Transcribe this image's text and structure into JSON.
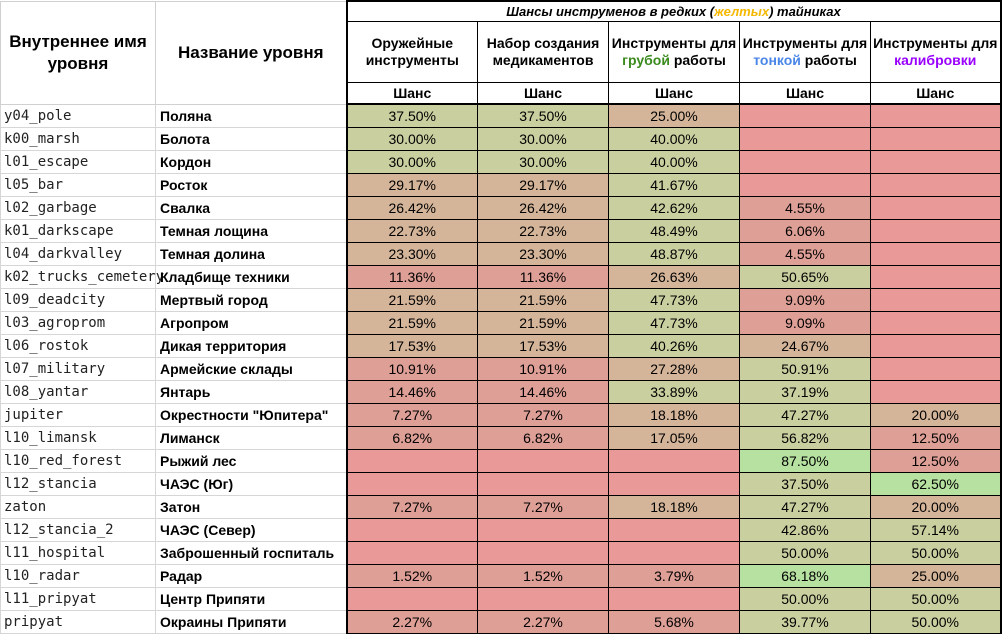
{
  "header": {
    "col_internal": "Внутреннее имя уровня",
    "col_name": "Название уровня",
    "group_title": {
      "pre": "Шансы инструменов в редких (",
      "highlight": "желтых",
      "post": ") тайниках"
    },
    "columns": [
      {
        "text": "Оружейные инструменты"
      },
      {
        "text": "Набор создания медикаментов"
      },
      {
        "pre": "Инструменты для ",
        "colored": "грубой",
        "post": " работы",
        "color": "#3a8a1d"
      },
      {
        "pre": "Инструменты для ",
        "colored": "тонкой",
        "post": " работы",
        "color": "#4a86e8"
      },
      {
        "pre": "Инструменты для ",
        "colored": "калибровки",
        "post": "",
        "color": "#9900ff"
      }
    ],
    "shans": "Шанс"
  },
  "colors": {
    "best": "#b7e1a1",
    "good": "#c9cf9f",
    "mid": "#d4b59a",
    "low": "#de9f96",
    "empty": "#ea9999"
  },
  "rows": [
    {
      "code": "y04_pole",
      "name": "Поляна",
      "values": [
        "37.50%",
        "37.50%",
        "25.00%",
        "",
        ""
      ]
    },
    {
      "code": "k00_marsh",
      "name": "Болота",
      "values": [
        "30.00%",
        "30.00%",
        "40.00%",
        "",
        ""
      ]
    },
    {
      "code": "l01_escape",
      "name": "Кордон",
      "values": [
        "30.00%",
        "30.00%",
        "40.00%",
        "",
        ""
      ]
    },
    {
      "code": "l05_bar",
      "name": "Росток",
      "values": [
        "29.17%",
        "29.17%",
        "41.67%",
        "",
        ""
      ]
    },
    {
      "code": "l02_garbage",
      "name": "Свалка",
      "values": [
        "26.42%",
        "26.42%",
        "42.62%",
        "4.55%",
        ""
      ]
    },
    {
      "code": "k01_darkscape",
      "name": "Темная лощина",
      "values": [
        "22.73%",
        "22.73%",
        "48.49%",
        "6.06%",
        ""
      ]
    },
    {
      "code": "l04_darkvalley",
      "name": "Темная долина",
      "values": [
        "23.30%",
        "23.30%",
        "48.87%",
        "4.55%",
        ""
      ]
    },
    {
      "code": "k02_trucks_cemetery",
      "name": "Кладбище техники",
      "values": [
        "11.36%",
        "11.36%",
        "26.63%",
        "50.65%",
        ""
      ]
    },
    {
      "code": "l09_deadcity",
      "name": "Мертвый город",
      "values": [
        "21.59%",
        "21.59%",
        "47.73%",
        "9.09%",
        ""
      ]
    },
    {
      "code": "l03_agroprom",
      "name": "Агропром",
      "values": [
        "21.59%",
        "21.59%",
        "47.73%",
        "9.09%",
        ""
      ]
    },
    {
      "code": "l06_rostok",
      "name": "Дикая территория",
      "values": [
        "17.53%",
        "17.53%",
        "40.26%",
        "24.67%",
        ""
      ]
    },
    {
      "code": "l07_military",
      "name": "Армейские склады",
      "values": [
        "10.91%",
        "10.91%",
        "27.28%",
        "50.91%",
        ""
      ]
    },
    {
      "code": "l08_yantar",
      "name": "Янтарь",
      "values": [
        "14.46%",
        "14.46%",
        "33.89%",
        "37.19%",
        ""
      ]
    },
    {
      "code": "jupiter",
      "name": "Окрестности \"Юпитера\"",
      "values": [
        "7.27%",
        "7.27%",
        "18.18%",
        "47.27%",
        "20.00%"
      ]
    },
    {
      "code": "l10_limansk",
      "name": "Лиманск",
      "values": [
        "6.82%",
        "6.82%",
        "17.05%",
        "56.82%",
        "12.50%"
      ]
    },
    {
      "code": "l10_red_forest",
      "name": "Рыжий лес",
      "values": [
        "",
        "",
        "",
        "87.50%",
        "12.50%"
      ]
    },
    {
      "code": "l12_stancia",
      "name": "ЧАЭС (Юг)",
      "values": [
        "",
        "",
        "",
        "37.50%",
        "62.50%"
      ]
    },
    {
      "code": "zaton",
      "name": "Затон",
      "values": [
        "7.27%",
        "7.27%",
        "18.18%",
        "47.27%",
        "20.00%"
      ]
    },
    {
      "code": "l12_stancia_2",
      "name": "ЧАЭС (Север)",
      "values": [
        "",
        "",
        "",
        "42.86%",
        "57.14%"
      ]
    },
    {
      "code": "l11_hospital",
      "name": "Заброшенный госпиталь",
      "values": [
        "",
        "",
        "",
        "50.00%",
        "50.00%"
      ]
    },
    {
      "code": "l10_radar",
      "name": "Радар",
      "values": [
        "1.52%",
        "1.52%",
        "3.79%",
        "68.18%",
        "25.00%"
      ]
    },
    {
      "code": "l11_pripyat",
      "name": "Центр Припяти",
      "values": [
        "",
        "",
        "",
        "50.00%",
        "50.00%"
      ]
    },
    {
      "code": "pripyat",
      "name": "Окраины Припяти",
      "values": [
        "2.27%",
        "2.27%",
        "5.68%",
        "39.77%",
        "50.00%"
      ]
    }
  ]
}
